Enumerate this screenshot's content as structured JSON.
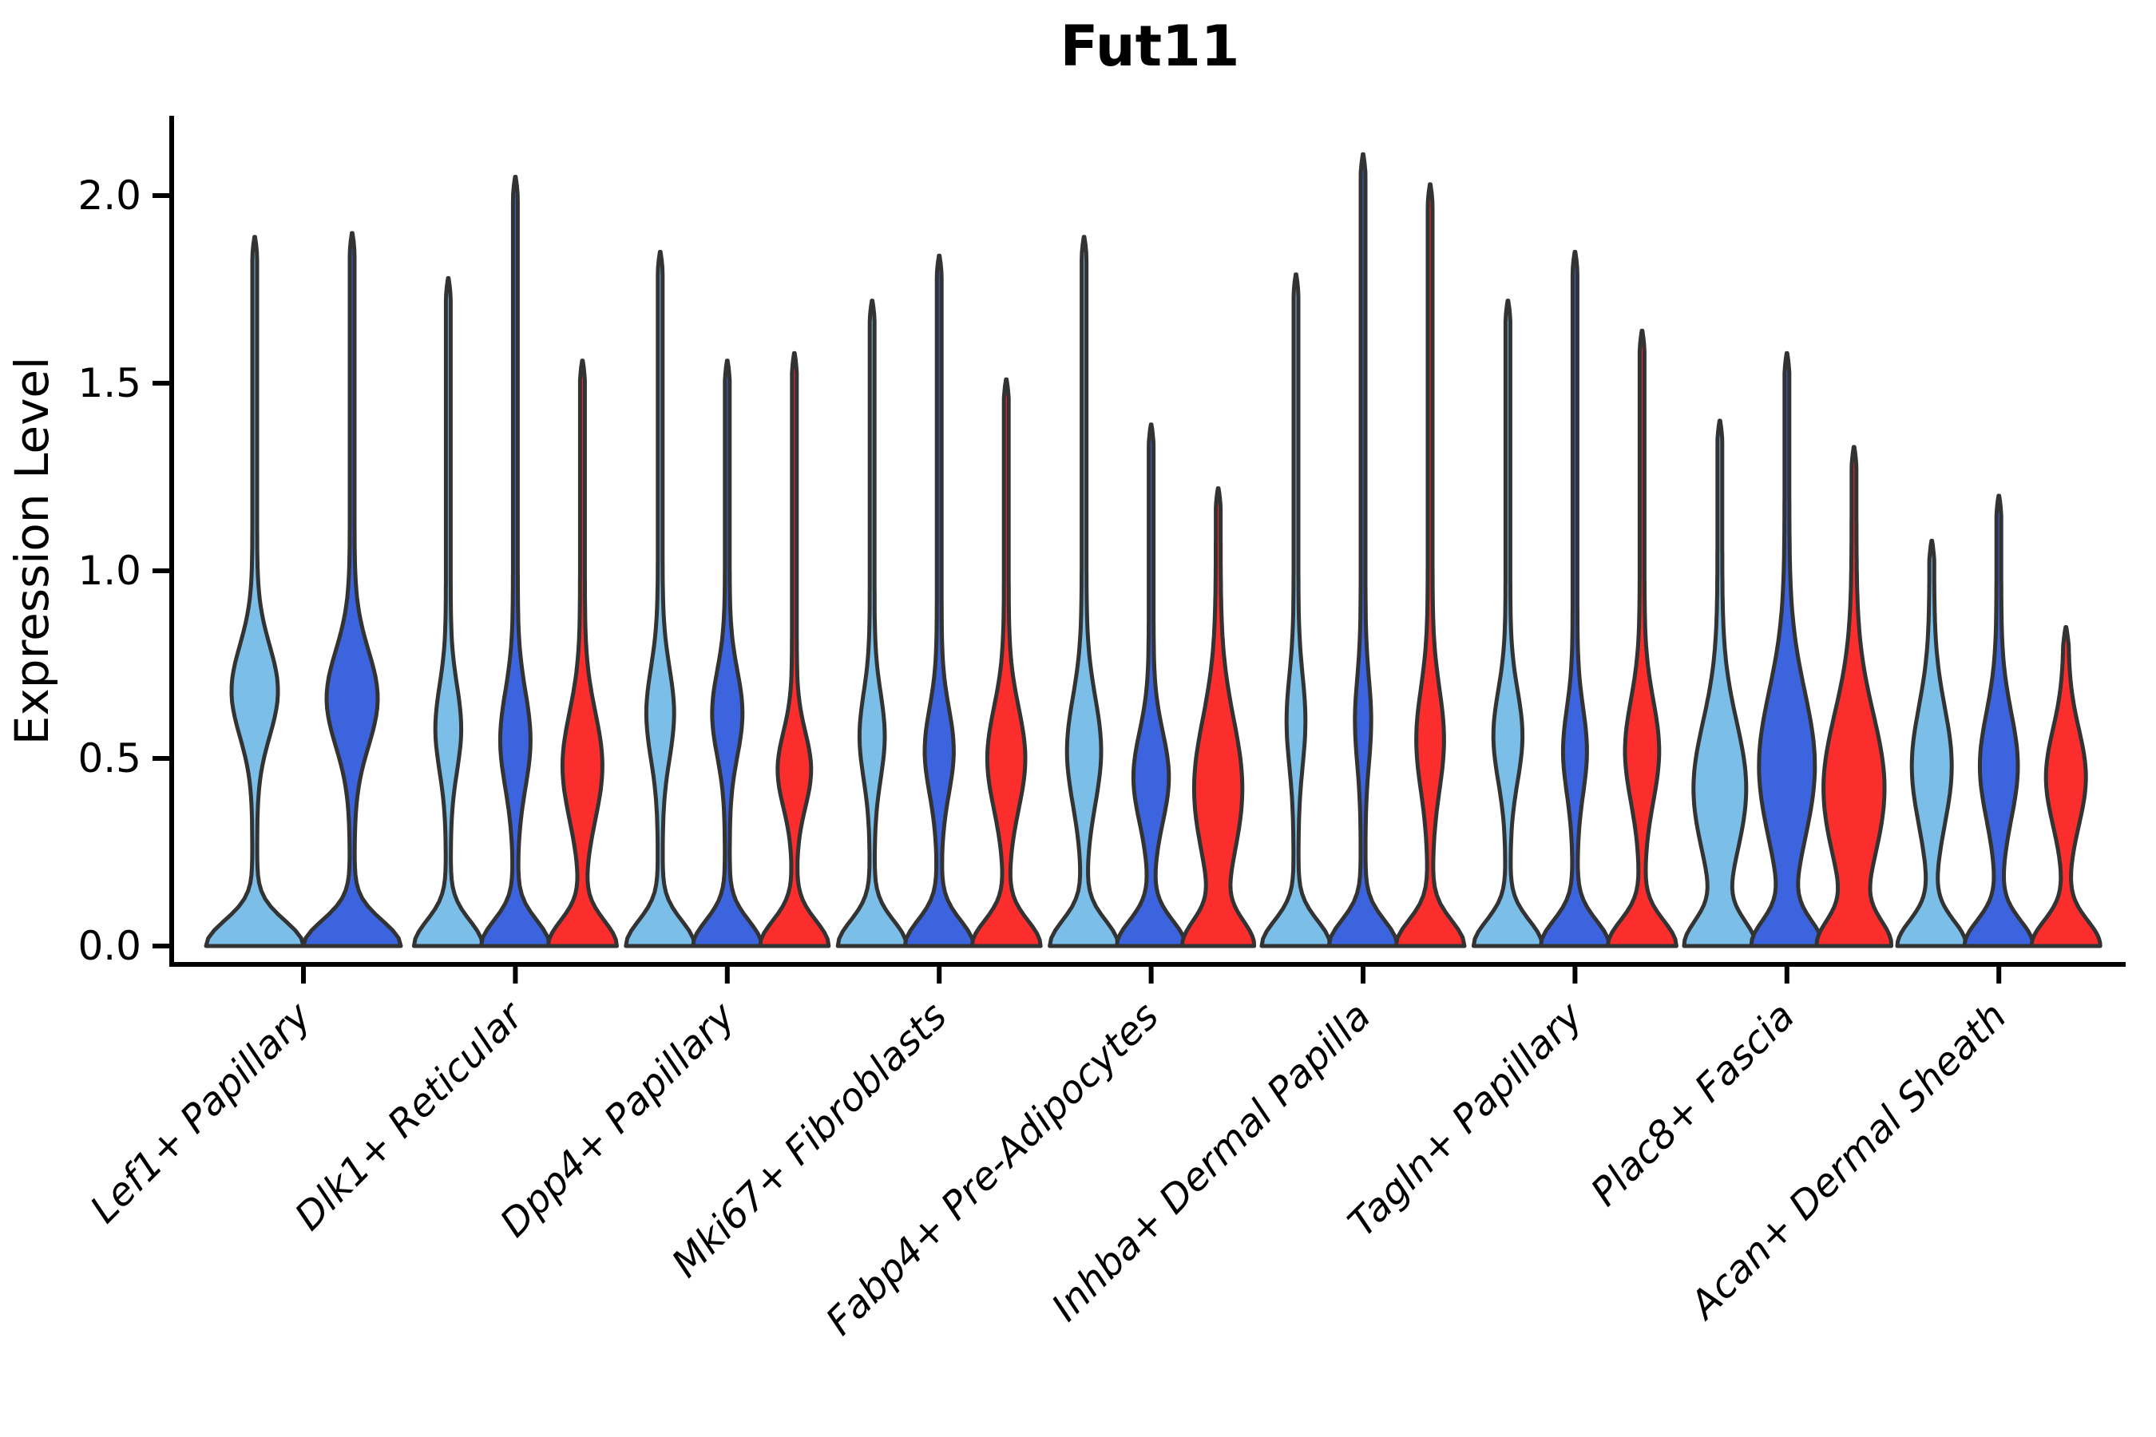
{
  "chart_data": {
    "type": "violin",
    "title": "Fut11",
    "ylabel": "Expression Level",
    "xlabel": "",
    "grid": false,
    "legend": "none",
    "ylim": [
      -0.05,
      2.2
    ],
    "ytick_values": [
      0.0,
      0.5,
      1.0,
      1.5,
      2.0
    ],
    "ytick_labels": [
      "0.0",
      "0.5",
      "1.0",
      "1.5",
      "2.0"
    ],
    "series_colors": {
      "light_blue": "#7BBFE9",
      "dark_blue": "#3C64DE",
      "red": "#FB2D2D"
    },
    "outline_color": "#333333",
    "axis_color": "#000000",
    "categories": [
      "Lef1+ Papillary",
      "Dlk1+ Reticular",
      "Dpp4+ Papillary",
      "Mki67+ Fibroblasts",
      "Fabp4+ Pre-Adipocytes",
      "Inhba+ Dermal Papilla",
      "Tagln+ Papillary",
      "Plac8+ Fascia",
      "Acan+ Dermal Sheath"
    ],
    "groups": [
      {
        "category": "Lef1+ Papillary",
        "violins": [
          {
            "color": "light_blue",
            "max": 1.89,
            "bulge_center": 0.68,
            "bulge_sigma": 0.17,
            "bulge_rel": 0.45
          },
          {
            "color": "dark_blue",
            "max": 1.9,
            "bulge_center": 0.66,
            "bulge_sigma": 0.18,
            "bulge_rel": 0.5
          }
        ]
      },
      {
        "category": "Dlk1+ Reticular",
        "violins": [
          {
            "color": "light_blue",
            "max": 1.78,
            "bulge_center": 0.58,
            "bulge_sigma": 0.16,
            "bulge_rel": 0.33
          },
          {
            "color": "dark_blue",
            "max": 2.05,
            "bulge_center": 0.55,
            "bulge_sigma": 0.18,
            "bulge_rel": 0.4
          },
          {
            "color": "red",
            "max": 1.56,
            "bulge_center": 0.48,
            "bulge_sigma": 0.2,
            "bulge_rel": 0.55
          }
        ]
      },
      {
        "category": "Dpp4+ Papillary",
        "violins": [
          {
            "color": "light_blue",
            "max": 1.85,
            "bulge_center": 0.62,
            "bulge_sigma": 0.17,
            "bulge_rel": 0.36
          },
          {
            "color": "dark_blue",
            "max": 1.56,
            "bulge_center": 0.62,
            "bulge_sigma": 0.16,
            "bulge_rel": 0.4
          },
          {
            "color": "red",
            "max": 1.58,
            "bulge_center": 0.47,
            "bulge_sigma": 0.14,
            "bulge_rel": 0.45
          }
        ]
      },
      {
        "category": "Mki67+ Fibroblasts",
        "violins": [
          {
            "color": "light_blue",
            "max": 1.72,
            "bulge_center": 0.56,
            "bulge_sigma": 0.16,
            "bulge_rel": 0.32
          },
          {
            "color": "dark_blue",
            "max": 1.84,
            "bulge_center": 0.52,
            "bulge_sigma": 0.16,
            "bulge_rel": 0.38
          },
          {
            "color": "red",
            "max": 1.51,
            "bulge_center": 0.5,
            "bulge_sigma": 0.19,
            "bulge_rel": 0.52
          }
        ]
      },
      {
        "category": "Fabp4+ Pre-Adipocytes",
        "violins": [
          {
            "color": "light_blue",
            "max": 1.89,
            "bulge_center": 0.52,
            "bulge_sigma": 0.2,
            "bulge_rel": 0.46
          },
          {
            "color": "dark_blue",
            "max": 1.39,
            "bulge_center": 0.45,
            "bulge_sigma": 0.17,
            "bulge_rel": 0.48
          },
          {
            "color": "red",
            "max": 1.22,
            "bulge_center": 0.42,
            "bulge_sigma": 0.26,
            "bulge_rel": 0.68
          }
        ]
      },
      {
        "category": "Inhba+ Dermal Papilla",
        "violins": [
          {
            "color": "light_blue",
            "max": 1.79,
            "bulge_center": 0.6,
            "bulge_sigma": 0.17,
            "bulge_rel": 0.22
          },
          {
            "color": "dark_blue",
            "max": 2.11,
            "bulge_center": 0.6,
            "bulge_sigma": 0.16,
            "bulge_rel": 0.18
          },
          {
            "color": "red",
            "max": 2.03,
            "bulge_center": 0.55,
            "bulge_sigma": 0.19,
            "bulge_rel": 0.36
          }
        ]
      },
      {
        "category": "Tagln+ Papillary",
        "violins": [
          {
            "color": "light_blue",
            "max": 1.72,
            "bulge_center": 0.56,
            "bulge_sigma": 0.17,
            "bulge_rel": 0.38
          },
          {
            "color": "dark_blue",
            "max": 1.85,
            "bulge_center": 0.52,
            "bulge_sigma": 0.16,
            "bulge_rel": 0.3
          },
          {
            "color": "red",
            "max": 1.64,
            "bulge_center": 0.52,
            "bulge_sigma": 0.19,
            "bulge_rel": 0.46
          }
        ]
      },
      {
        "category": "Plac8+ Fascia",
        "violins": [
          {
            "color": "light_blue",
            "max": 1.4,
            "bulge_center": 0.42,
            "bulge_sigma": 0.25,
            "bulge_rel": 0.75
          },
          {
            "color": "dark_blue",
            "max": 1.58,
            "bulge_center": 0.48,
            "bulge_sigma": 0.28,
            "bulge_rel": 0.8
          },
          {
            "color": "red",
            "max": 1.33,
            "bulge_center": 0.42,
            "bulge_sigma": 0.28,
            "bulge_rel": 0.88
          }
        ]
      },
      {
        "category": "Acan+ Dermal Sheath",
        "violins": [
          {
            "color": "light_blue",
            "max": 1.08,
            "bulge_center": 0.48,
            "bulge_sigma": 0.22,
            "bulge_rel": 0.55
          },
          {
            "color": "dark_blue",
            "max": 1.2,
            "bulge_center": 0.48,
            "bulge_sigma": 0.2,
            "bulge_rel": 0.52
          },
          {
            "color": "red",
            "max": 0.85,
            "bulge_center": 0.45,
            "bulge_sigma": 0.18,
            "bulge_rel": 0.55
          }
        ]
      }
    ]
  }
}
